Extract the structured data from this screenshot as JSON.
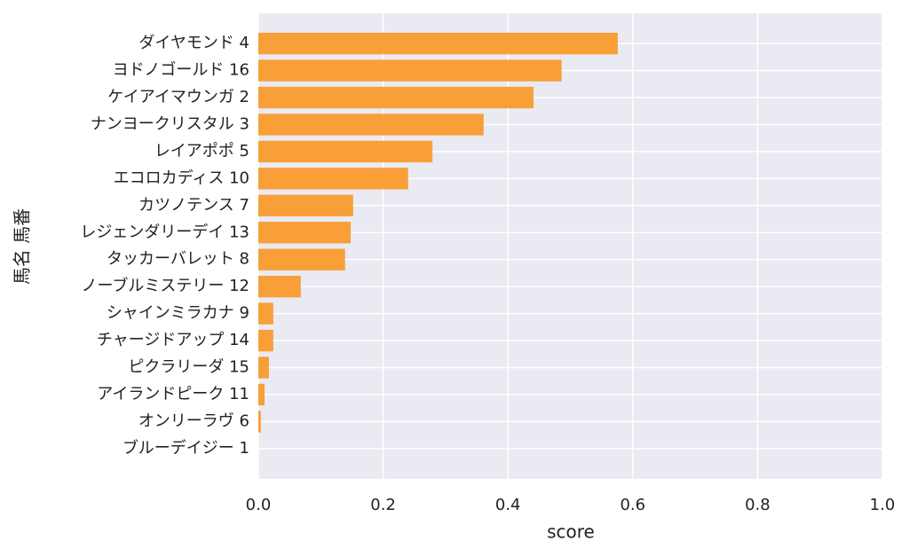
{
  "chart_data": {
    "type": "barh",
    "ylabel": "馬名 馬番",
    "xlabel": "score",
    "categories": [
      "ダイヤモンド 4",
      "ヨドノゴールド 16",
      "ケイアイマウンガ 2",
      "ナンヨークリスタル 3",
      "レイアポポ 5",
      "エコロカディス 10",
      "カツノテンス 7",
      "レジェンダリーデイ 13",
      "タッカーバレット 8",
      "ノーブルミステリー 12",
      "シャインミラカナ 9",
      "チャージドアップ 14",
      "ピクラリーダ 15",
      "アイランドピーク 11",
      "オンリーラヴ 6",
      "ブルーデイジー 1"
    ],
    "values": [
      0.576,
      0.486,
      0.441,
      0.361,
      0.279,
      0.24,
      0.152,
      0.148,
      0.139,
      0.068,
      0.024,
      0.024,
      0.017,
      0.01,
      0.004,
      0
    ],
    "color": "#f99b2d",
    "xlim": [
      0,
      1
    ],
    "xticks": [
      {
        "value": 0,
        "label": "0.0"
      },
      0.2,
      0.4,
      0.6,
      0.8,
      {
        "value": 1,
        "label": "1.0"
      }
    ],
    "grid": true
  }
}
